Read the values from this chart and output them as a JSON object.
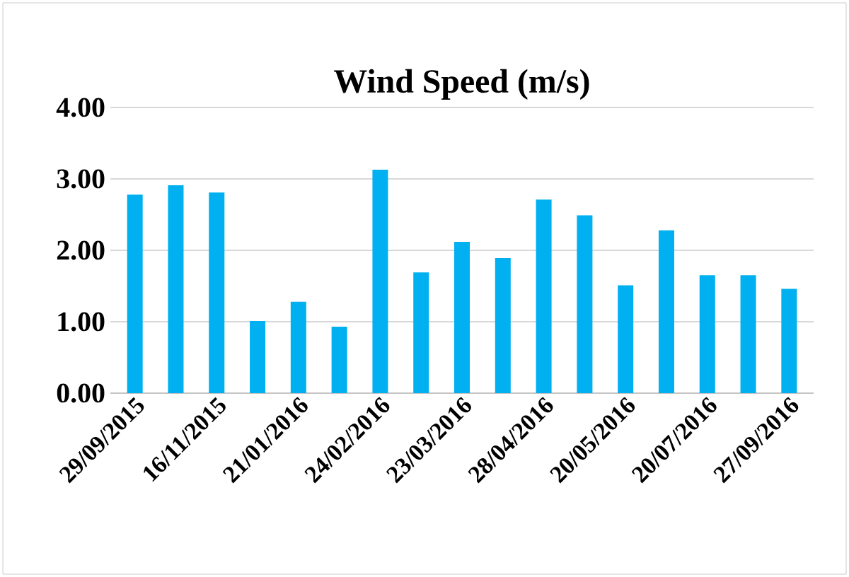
{
  "chart_data": {
    "type": "bar",
    "title": "Wind Speed (m/s)",
    "categories": [
      "29/09/2015",
      null,
      "16/11/2015",
      null,
      "21/01/2016",
      null,
      "24/02/2016",
      null,
      "23/03/2016",
      null,
      "28/04/2016",
      null,
      "20/05/2016",
      null,
      "20/07/2016",
      null,
      "27/09/2016"
    ],
    "values": [
      2.78,
      2.91,
      2.81,
      1.01,
      1.28,
      0.93,
      3.13,
      1.69,
      2.12,
      1.89,
      2.71,
      2.49,
      1.51,
      2.28,
      1.65,
      1.65,
      1.46
    ],
    "color": "#00b0f0",
    "ylim": [
      0,
      4
    ],
    "yticks": [
      {
        "value": 0,
        "label": "0.00"
      },
      {
        "value": 1,
        "label": "1.00"
      },
      {
        "value": 2,
        "label": "2.00"
      },
      {
        "value": 3,
        "label": "3.00"
      },
      {
        "value": 4,
        "label": "4.00"
      }
    ],
    "grid": "y"
  }
}
